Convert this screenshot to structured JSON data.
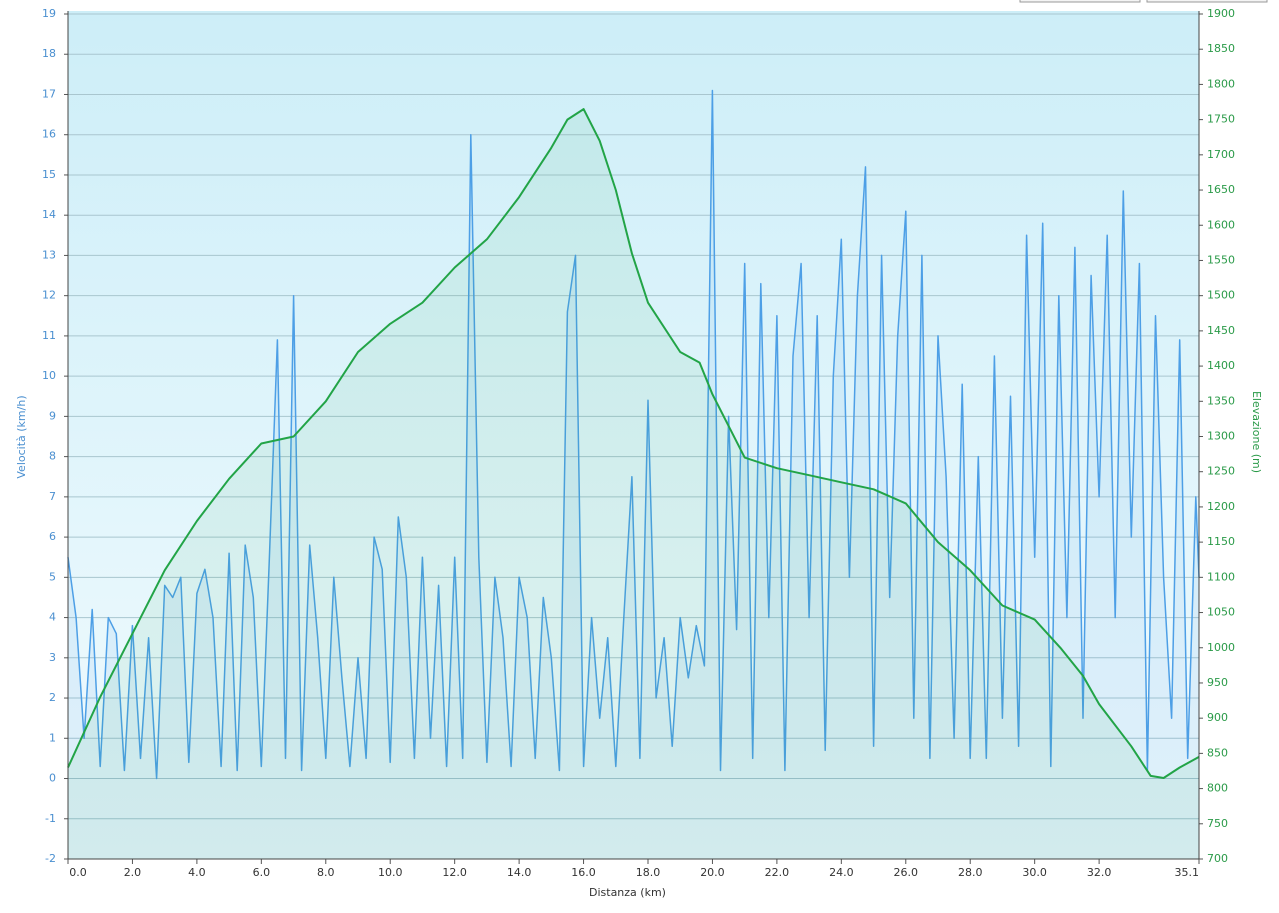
{
  "chart_data": {
    "type": "line",
    "xlabel": "Distanza  (km)",
    "ylabel": "Velocità (km/h)",
    "y2label": "Elevazione (m)",
    "xlim": [
      0,
      35.1
    ],
    "ylim": [
      -2,
      19
    ],
    "y2lim": [
      700,
      1900
    ],
    "grid": true,
    "xticks": [
      {
        "value": 0,
        "label": "0.0"
      },
      {
        "value": 2,
        "label": "2.0"
      },
      {
        "value": 4,
        "label": "4.0"
      },
      {
        "value": 6,
        "label": "6.0"
      },
      {
        "value": 8,
        "label": "8.0"
      },
      {
        "value": 10,
        "label": "10.0"
      },
      {
        "value": 12,
        "label": "12.0"
      },
      {
        "value": 14,
        "label": "14.0"
      },
      {
        "value": 16,
        "label": "16.0"
      },
      {
        "value": 18,
        "label": "18.0"
      },
      {
        "value": 20,
        "label": "20.0"
      },
      {
        "value": 22,
        "label": "22.0"
      },
      {
        "value": 24,
        "label": "24.0"
      },
      {
        "value": 26,
        "label": "26.0"
      },
      {
        "value": 28,
        "label": "28.0"
      },
      {
        "value": 30,
        "label": "30.0"
      },
      {
        "value": 32,
        "label": "32.0"
      },
      35.1
    ],
    "yticks": [
      -2,
      -1,
      0,
      1,
      2,
      3,
      4,
      5,
      6,
      7,
      8,
      9,
      10,
      11,
      12,
      13,
      14,
      15,
      16,
      17,
      18,
      19
    ],
    "y2ticks": [
      700,
      750,
      800,
      850,
      900,
      950,
      1000,
      1050,
      1100,
      1150,
      1200,
      1250,
      1300,
      1350,
      1400,
      1450,
      1500,
      1550,
      1600,
      1650,
      1700,
      1750,
      1800,
      1850,
      1900
    ],
    "series": [
      {
        "color": "#4d9fe6",
        "axis": "y",
        "x": [
          0,
          0.25,
          0.5,
          0.75,
          1,
          1.25,
          1.5,
          1.75,
          2,
          2.25,
          2.5,
          2.75,
          3,
          3.25,
          3.5,
          3.75,
          4,
          4.25,
          4.5,
          4.75,
          5,
          5.25,
          5.5,
          5.75,
          6,
          6.25,
          6.5,
          6.75,
          7,
          7.25,
          7.5,
          7.75,
          8,
          8.25,
          8.5,
          8.75,
          9,
          9.25,
          9.5,
          9.75,
          10,
          10.25,
          10.5,
          10.75,
          11,
          11.25,
          11.5,
          11.75,
          12,
          12.25,
          12.5,
          12.75,
          13,
          13.25,
          13.5,
          13.75,
          14,
          14.25,
          14.5,
          14.75,
          15,
          15.25,
          15.5,
          15.75,
          16,
          16.25,
          16.5,
          16.75,
          17,
          17.25,
          17.5,
          17.75,
          18,
          18.25,
          18.5,
          18.75,
          19,
          19.25,
          19.5,
          19.75,
          20,
          20.25,
          20.5,
          20.75,
          21,
          21.25,
          21.5,
          21.75,
          22,
          22.25,
          22.5,
          22.75,
          23,
          23.25,
          23.5,
          23.75,
          24,
          24.25,
          24.5,
          24.75,
          25,
          25.25,
          25.5,
          25.75,
          26,
          26.25,
          26.5,
          26.75,
          27,
          27.25,
          27.5,
          27.75,
          28,
          28.25,
          28.5,
          28.75,
          29,
          29.25,
          29.5,
          29.75,
          30,
          30.25,
          30.5,
          30.75,
          31,
          31.25,
          31.5,
          31.75,
          32,
          32.25,
          32.5,
          32.75,
          33,
          33.25,
          33.5,
          33.75,
          34,
          34.25,
          34.5,
          34.75,
          35,
          35.1
        ],
        "values": [
          5.5,
          4,
          1,
          4.2,
          0.3,
          4,
          3.6,
          0.2,
          3.8,
          0.5,
          3.5,
          0,
          4.8,
          4.5,
          5,
          0.4,
          4.6,
          5.2,
          4,
          0.3,
          5.6,
          0.2,
          5.8,
          4.5,
          0.3,
          5.5,
          10.9,
          0.5,
          12,
          0.2,
          5.8,
          3.5,
          0.5,
          5,
          2.5,
          0.3,
          3,
          0.5,
          6,
          5.2,
          0.4,
          6.5,
          5,
          0.5,
          5.5,
          1,
          4.8,
          0.3,
          5.5,
          0.5,
          16,
          5.5,
          0.4,
          5,
          3.5,
          0.3,
          5,
          4,
          0.5,
          4.5,
          3,
          0.2,
          11.6,
          13,
          0.3,
          4,
          1.5,
          3.5,
          0.3,
          4,
          7.5,
          0.5,
          9.4,
          2,
          3.5,
          0.8,
          4,
          2.5,
          3.8,
          2.8,
          17.1,
          0.2,
          9,
          3.7,
          12.8,
          0.5,
          12.3,
          4,
          11.5,
          0.2,
          10.5,
          12.8,
          4,
          11.5,
          0.7,
          10,
          13.4,
          5,
          12,
          15.2,
          0.8,
          13,
          4.5,
          11,
          14.1,
          1.5,
          13,
          0.5,
          11,
          7.5,
          1,
          9.8,
          0.5,
          8,
          0.5,
          10.5,
          1.5,
          9.5,
          0.8,
          13.5,
          5.5,
          13.8,
          0.3,
          12,
          4,
          13.2,
          1.5,
          12.5,
          7,
          13.5,
          4,
          14.6,
          6,
          12.8,
          0.2,
          11.5,
          5,
          1.5,
          10.9,
          0.5,
          7,
          5
        ]
      },
      {
        "color": "#22a447",
        "axis": "y2",
        "x": [
          0,
          1,
          2,
          3,
          4,
          5,
          6,
          7,
          8,
          9,
          10,
          11,
          12,
          13,
          14,
          15,
          15.5,
          16,
          16.5,
          17,
          17.5,
          18,
          19,
          19.6,
          20,
          21,
          22,
          23,
          24,
          25,
          26,
          27,
          28,
          29,
          30,
          30.8,
          31.5,
          32,
          33,
          33.6,
          34,
          34.5,
          35.1
        ],
        "values": [
          830,
          930,
          1020,
          1110,
          1180,
          1240,
          1290,
          1300,
          1350,
          1420,
          1460,
          1490,
          1540,
          1580,
          1640,
          1710,
          1750,
          1765,
          1720,
          1650,
          1560,
          1490,
          1420,
          1405,
          1360,
          1270,
          1255,
          1245,
          1235,
          1225,
          1205,
          1150,
          1110,
          1060,
          1040,
          1000,
          960,
          920,
          860,
          818,
          815,
          830,
          845
        ]
      }
    ]
  }
}
